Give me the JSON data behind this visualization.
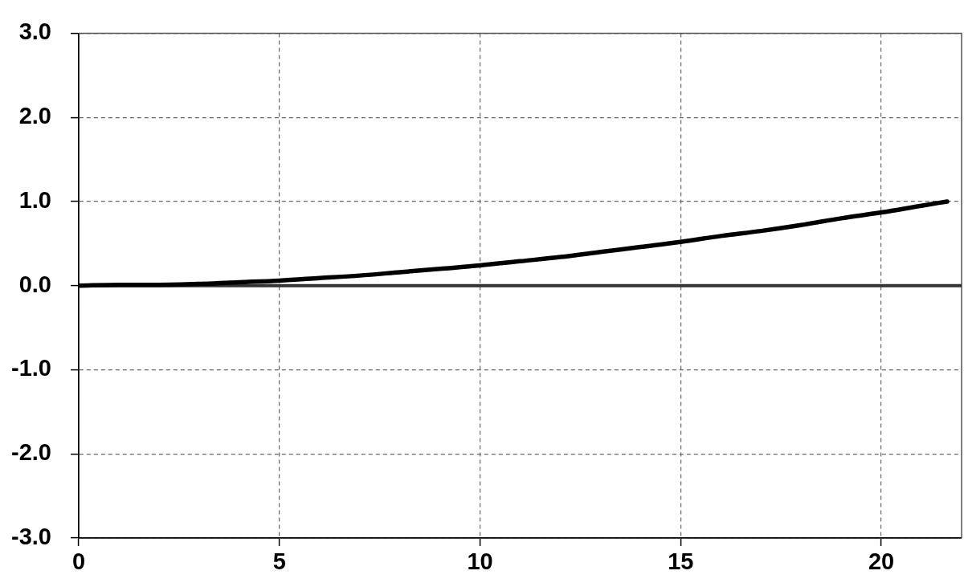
{
  "chart_data": {
    "type": "line",
    "x": [
      0,
      1,
      2,
      3,
      4,
      5,
      6,
      7,
      8,
      9,
      10,
      11,
      12,
      13,
      14,
      15,
      16,
      17,
      18,
      19,
      20,
      21,
      21.64
    ],
    "series": [
      {
        "color": "#000000",
        "values": [
          0,
          0.01,
          0.01,
          0.02,
          0.04,
          0.06,
          0.09,
          0.12,
          0.16,
          0.2,
          0.24,
          0.29,
          0.34,
          0.4,
          0.46,
          0.52,
          0.59,
          0.65,
          0.72,
          0.8,
          0.87,
          0.95,
          1.0
        ]
      }
    ],
    "xlim": [
      0,
      22
    ],
    "ylim": [
      -3,
      3
    ],
    "xticks": [
      0,
      5,
      10,
      15,
      20
    ],
    "yticks": [
      {
        "value": -3,
        "label": "-3.0"
      },
      {
        "value": -2,
        "label": "-2.0"
      },
      {
        "value": -1,
        "label": "-1.0"
      },
      {
        "value": 0,
        "label": "0.0"
      },
      {
        "value": 1,
        "label": "1.0"
      },
      {
        "value": 2,
        "label": "2.0"
      },
      {
        "value": 3,
        "label": "3.0"
      }
    ],
    "grid": true,
    "line_style": "solid",
    "ref_lines": [
      {
        "axis": "y",
        "value": 0,
        "color": "#333333"
      }
    ]
  }
}
